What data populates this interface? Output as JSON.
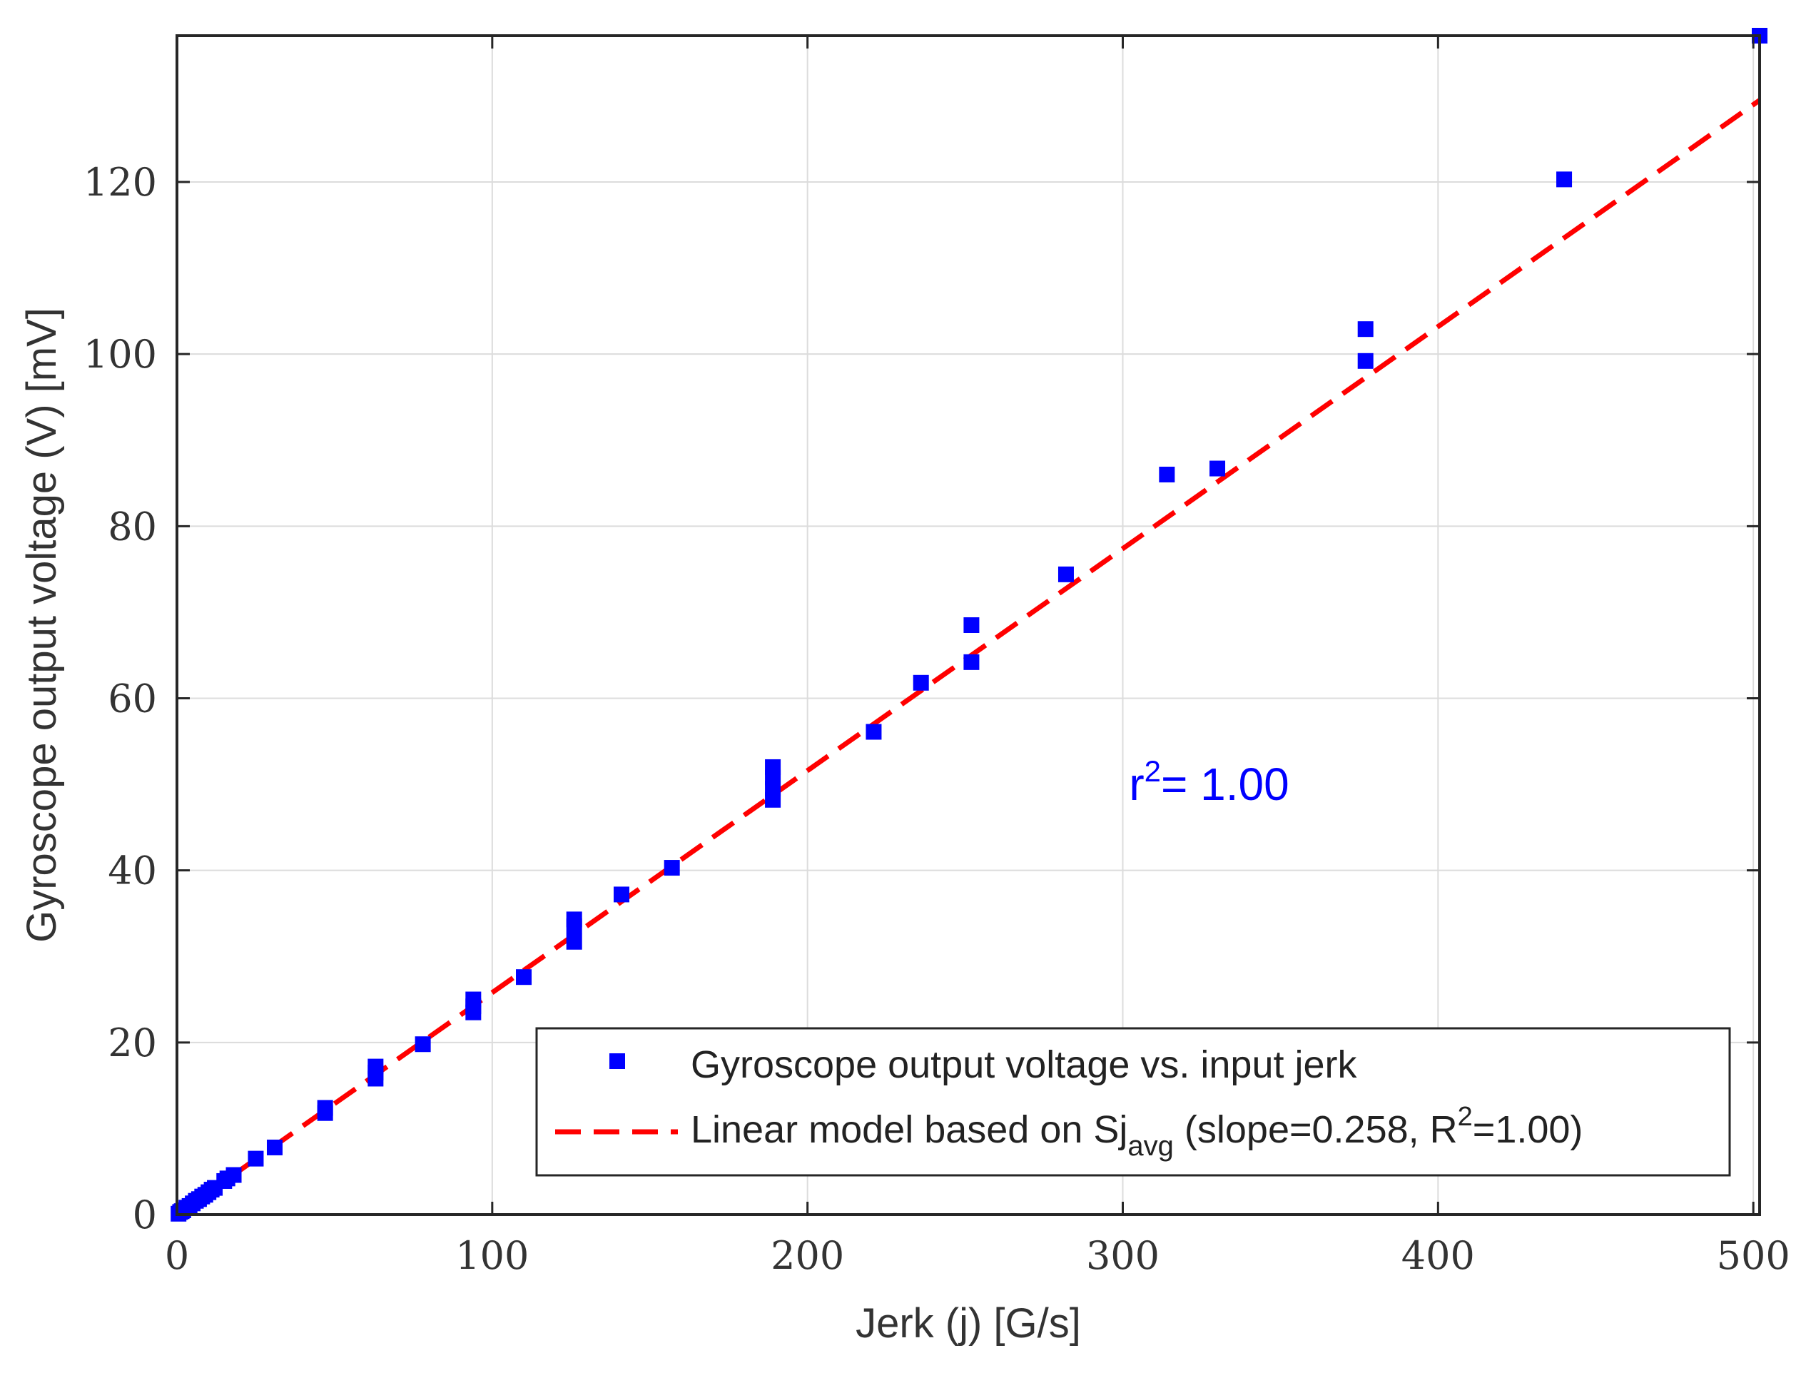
{
  "chart_data": {
    "type": "scatter",
    "title": "",
    "xlabel": "Jerk (j) [G/s]",
    "ylabel": "Gyroscope output voltage (V) [mV]",
    "xlim": [
      0,
      502
    ],
    "ylim": [
      0,
      137
    ],
    "xticks": [
      0,
      100,
      200,
      300,
      400,
      500
    ],
    "yticks": [
      0,
      20,
      40,
      60,
      80,
      100,
      120
    ],
    "xtick_labels": [
      "0",
      "100",
      "200",
      "300",
      "400",
      "500"
    ],
    "ytick_labels": [
      "0",
      "20",
      "40",
      "60",
      "80",
      "100",
      "120"
    ],
    "grid": true,
    "legend_position": "bottom-right",
    "series": [
      {
        "name": "Gyroscope output voltage vs. input jerk",
        "kind": "scatter",
        "marker": "square",
        "color": "#0000ff",
        "points": [
          [
            0.5,
            0.1
          ],
          [
            1,
            0.3
          ],
          [
            1.5,
            0.4
          ],
          [
            2,
            0.5
          ],
          [
            3,
            0.8
          ],
          [
            4,
            1.0
          ],
          [
            5,
            1.3
          ],
          [
            6,
            1.6
          ],
          [
            7,
            1.8
          ],
          [
            8,
            2.1
          ],
          [
            9,
            2.3
          ],
          [
            10,
            2.6
          ],
          [
            11,
            2.9
          ],
          [
            12,
            3.1
          ],
          [
            15,
            3.9
          ],
          [
            16,
            4.2
          ],
          [
            18,
            4.6
          ],
          [
            25,
            6.5
          ],
          [
            31,
            7.8
          ],
          [
            47,
            11.8
          ],
          [
            47,
            12.4
          ],
          [
            63,
            15.8
          ],
          [
            63,
            16.5
          ],
          [
            63,
            17.2
          ],
          [
            78,
            19.8
          ],
          [
            94,
            23.5
          ],
          [
            94,
            24.2
          ],
          [
            94,
            25.0
          ],
          [
            110,
            27.6
          ],
          [
            126,
            31.7
          ],
          [
            126,
            33.5
          ],
          [
            126,
            34.3
          ],
          [
            141,
            37.2
          ],
          [
            157,
            40.3
          ],
          [
            189,
            48.2
          ],
          [
            189,
            49.5
          ],
          [
            189,
            50.8
          ],
          [
            189,
            52.0
          ],
          [
            221,
            56.1
          ],
          [
            236,
            61.8
          ],
          [
            252,
            64.2
          ],
          [
            252,
            68.5
          ],
          [
            282,
            74.4
          ],
          [
            314,
            86.0
          ],
          [
            330,
            86.7
          ],
          [
            377,
            99.2
          ],
          [
            377,
            102.9
          ],
          [
            440,
            120.3
          ],
          [
            502,
            137.0
          ]
        ]
      },
      {
        "name": "Linear model based on Sj",
        "name_subscript": "avg",
        "name_suffix": " (slope=0.258, R",
        "name_superscript": "2",
        "name_end": "=1.00)",
        "kind": "line",
        "style": "dashed",
        "color": "#ff0000",
        "slope": 0.258,
        "x": [
          0,
          502
        ],
        "y": [
          0,
          129.5
        ]
      }
    ],
    "annotations": [
      {
        "text": "r",
        "superscript": "2",
        "suffix": "= 1.00",
        "x": 302,
        "y": 50,
        "color": "#0000ff"
      }
    ]
  }
}
